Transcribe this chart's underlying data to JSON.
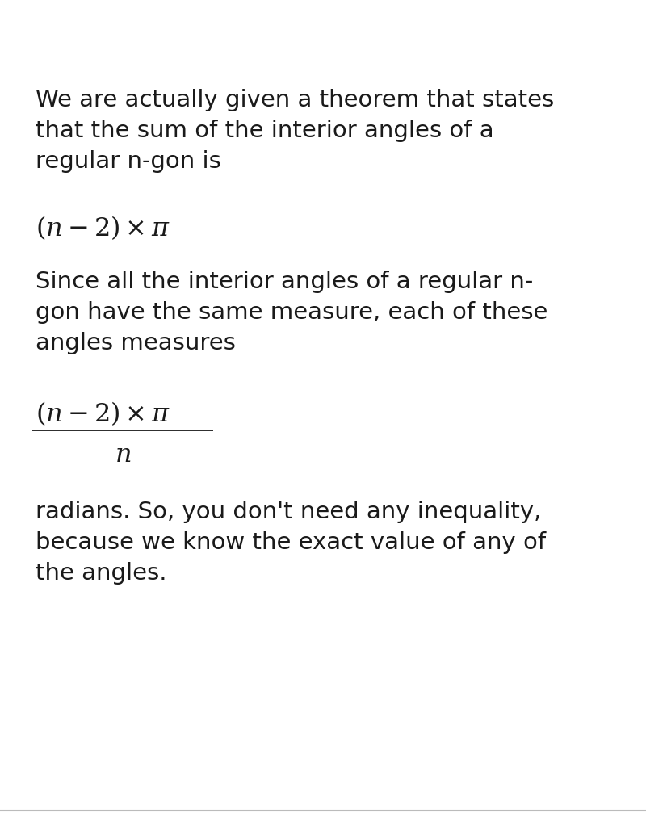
{
  "background_color": "#ffffff",
  "text_color": "#1a1a1a",
  "paragraph1_lines": [
    "We are actually given a theorem that states",
    "that the sum of the interior angles of a",
    "regular n-gon is"
  ],
  "paragraph2_lines": [
    "Since all the interior angles of a regular n-",
    "gon have the same measure, each of these",
    "angles measures"
  ],
  "paragraph3_lines": [
    "radians. So, you don't need any inequality,",
    "because we know the exact value of any of",
    "the angles."
  ],
  "font_size_text": 21,
  "font_size_formula": 23,
  "fig_width": 8.0,
  "fig_height": 10.18,
  "dpi": 100
}
